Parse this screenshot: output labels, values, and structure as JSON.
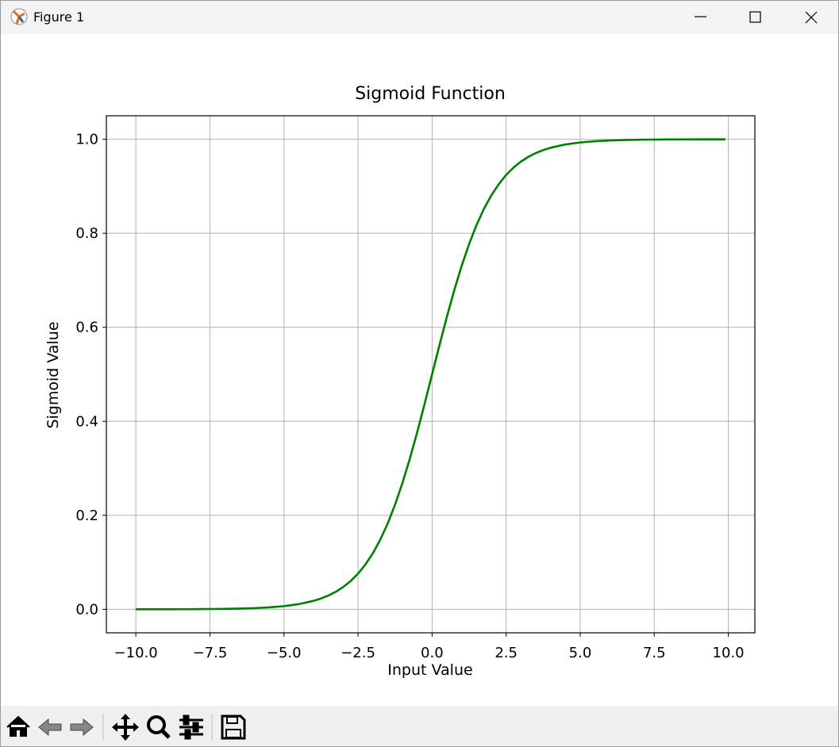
{
  "window": {
    "title": "Figure 1"
  },
  "chart_data": {
    "type": "line",
    "title": "Sigmoid Function",
    "xlabel": "Input Value",
    "ylabel": "Sigmoid Value",
    "color": "#008000",
    "grid": true,
    "xlim": [
      -10.995,
      10.895
    ],
    "ylim": [
      -0.05,
      1.05
    ],
    "xticks": [
      {
        "value": -10,
        "label": "−10.0"
      },
      {
        "value": -7.5,
        "label": "−7.5"
      },
      {
        "value": -5,
        "label": "−5.0"
      },
      {
        "value": -2.5,
        "label": "−2.5"
      },
      {
        "value": 0,
        "label": "0.0"
      },
      {
        "value": 2.5,
        "label": "2.5"
      },
      {
        "value": 5,
        "label": "5.0"
      },
      {
        "value": 7.5,
        "label": "7.5"
      },
      {
        "value": 10,
        "label": "10.0"
      }
    ],
    "yticks": [
      {
        "value": 0,
        "label": "0.0"
      },
      0.2,
      0.4,
      0.6,
      0.8,
      {
        "value": 1,
        "label": "1.0"
      }
    ],
    "x": [
      -10,
      -9.5,
      -9,
      -8.5,
      -8,
      -7.5,
      -7,
      -6.5,
      -6,
      -5.5,
      -5,
      -4.5,
      -4,
      -3.75,
      -3.5,
      -3.25,
      -3,
      -2.75,
      -2.5,
      -2.25,
      -2,
      -1.75,
      -1.5,
      -1.25,
      -1,
      -0.75,
      -0.5,
      -0.25,
      0,
      0.25,
      0.5,
      0.75,
      1,
      1.25,
      1.5,
      1.75,
      2,
      2.25,
      2.5,
      2.75,
      3,
      3.25,
      3.5,
      3.75,
      4,
      4.5,
      5,
      5.5,
      6,
      6.5,
      7,
      7.5,
      8,
      8.5,
      9,
      9.5,
      9.9
    ],
    "values": [
      0.0,
      0.0001,
      0.0001,
      0.0002,
      0.0003,
      0.0006,
      0.0009,
      0.0015,
      0.0025,
      0.0041,
      0.0067,
      0.011,
      0.018,
      0.023,
      0.0293,
      0.0373,
      0.0474,
      0.0601,
      0.0759,
      0.0954,
      0.1192,
      0.148,
      0.1824,
      0.2227,
      0.2689,
      0.3208,
      0.3775,
      0.4378,
      0.5,
      0.5622,
      0.6225,
      0.6792,
      0.7311,
      0.7773,
      0.8176,
      0.852,
      0.8808,
      0.9046,
      0.9241,
      0.9399,
      0.9526,
      0.9627,
      0.9707,
      0.977,
      0.982,
      0.989,
      0.9933,
      0.9959,
      0.9975,
      0.9985,
      0.9991,
      0.9994,
      0.9997,
      0.9998,
      0.9999,
      0.9999,
      1.0
    ]
  }
}
